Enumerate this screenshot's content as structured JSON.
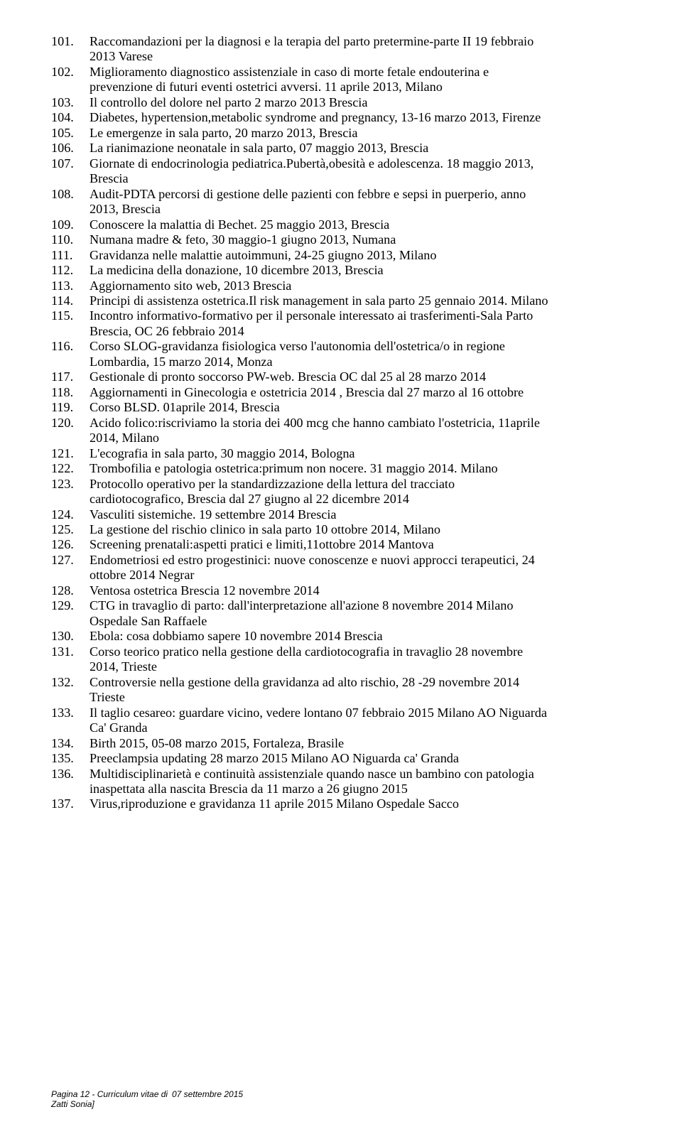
{
  "footer": {
    "line1_left": "Pagina 12 - Curriculum vitae di",
    "line1_right": "07 settembre 2015",
    "line2_left": "Zatti Sonia]"
  },
  "items": [
    {
      "n": "101.",
      "t": "Raccomandazioni per la diagnosi e la terapia del parto pretermine-parte II 19 febbraio",
      "c": "2013 Varese"
    },
    {
      "n": "102.",
      "t": "Miglioramento diagnostico assistenziale in caso di morte fetale endouterina e",
      "c": "prevenzione di futuri eventi ostetrici avversi. 11 aprile 2013, Milano"
    },
    {
      "n": "103.",
      "t": "Il controllo del dolore nel parto 2 marzo 2013 Brescia"
    },
    {
      "n": "104.",
      "t": "Diabetes, hypertension,metabolic syndrome and pregnancy, 13-16 marzo 2013, Firenze"
    },
    {
      "n": "105.",
      "t": "Le emergenze in sala parto, 20 marzo 2013, Brescia"
    },
    {
      "n": "106.",
      "t": "La rianimazione neonatale in sala parto, 07 maggio 2013, Brescia"
    },
    {
      "n": "107.",
      "t": "Giornate di endocrinologia pediatrica.Pubertà,obesità e adolescenza. 18 maggio 2013,",
      "c": "Brescia"
    },
    {
      "n": "108.",
      "t": "Audit-PDTA percorsi di gestione delle pazienti con febbre e sepsi in puerperio, anno",
      "c": "2013, Brescia"
    },
    {
      "n": "109.",
      "t": "Conoscere la malattia di Bechet. 25 maggio 2013, Brescia"
    },
    {
      "n": "110.",
      "t": "Numana madre & feto, 30 maggio-1 giugno 2013, Numana"
    },
    {
      "n": "111.",
      "t": "Gravidanza nelle malattie autoimmuni, 24-25 giugno 2013, Milano"
    },
    {
      "n": "112.",
      "t": "La medicina della donazione, 10 dicembre 2013, Brescia"
    },
    {
      "n": "113.",
      "t": "Aggiornamento sito web, 2013 Brescia"
    },
    {
      "n": "114.",
      "t": "Principi di assistenza ostetrica.Il risk management in sala parto 25 gennaio 2014. Milano"
    },
    {
      "n": "115.",
      "t": "Incontro informativo-formativo per il personale interessato ai trasferimenti-Sala Parto",
      "c": "Brescia, OC 26 febbraio 2014"
    },
    {
      "n": "116.",
      "t": "Corso SLOG-gravidanza fisiologica verso l'autonomia dell'ostetrica/o in regione",
      "c": "Lombardia, 15 marzo 2014, Monza"
    },
    {
      "n": "117.",
      "t": "Gestionale di pronto soccorso PW-web. Brescia OC dal 25 al 28 marzo 2014"
    },
    {
      "n": "118.",
      "t": "Aggiornamenti in Ginecologia e ostetricia 2014 , Brescia dal 27 marzo al 16 ottobre"
    },
    {
      "n": "119.",
      "t": "Corso BLSD. 01aprile 2014, Brescia"
    },
    {
      "n": "120.",
      "t": "Acido folico:riscriviamo la storia dei 400 mcg che hanno cambiato l'ostetricia, 11aprile",
      "c": "2014, Milano"
    },
    {
      "n": "121.",
      "t": "L'ecografia in sala parto, 30 maggio 2014, Bologna"
    },
    {
      "n": "122.",
      "t": "Trombofilia e patologia ostetrica:primum non nocere. 31 maggio 2014. Milano"
    },
    {
      "n": "123.",
      "t": "Protocollo operativo per la standardizzazione della lettura del tracciato",
      "c": "cardiotocografico, Brescia dal 27 giugno al 22 dicembre 2014"
    },
    {
      "n": "124.",
      "t": "Vasculiti sistemiche. 19 settembre 2014 Brescia"
    },
    {
      "n": "125.",
      "t": "La gestione del rischio clinico in  sala parto 10 ottobre 2014, Milano"
    },
    {
      "n": "126.",
      "t": "Screening prenatali:aspetti pratici e limiti,11ottobre 2014 Mantova"
    },
    {
      "n": "127.",
      "t": "Endometriosi ed estro progestinici: nuove conoscenze e nuovi approcci terapeutici, 24",
      "c": "ottobre 2014 Negrar"
    },
    {
      "n": "128.",
      "t": "Ventosa ostetrica Brescia 12 novembre 2014"
    },
    {
      "n": "129.",
      "t": "CTG in travaglio di parto: dall'interpretazione all'azione 8 novembre 2014 Milano",
      "c": "Ospedale San Raffaele"
    },
    {
      "n": "130.",
      "t": "Ebola: cosa dobbiamo sapere 10 novembre 2014 Brescia"
    },
    {
      "n": "131.",
      "t": "Corso teorico pratico nella gestione della cardiotocografia in travaglio 28 novembre",
      "c": "2014, Trieste"
    },
    {
      "n": "132.",
      "t": "Controversie nella gestione della gravidanza ad alto rischio, 28 -29 novembre 2014",
      "c": "Trieste"
    },
    {
      "n": "133.",
      "t": "Il taglio cesareo: guardare vicino, vedere lontano 07 febbraio 2015 Milano AO Niguarda",
      "c": "Ca' Granda"
    },
    {
      "n": "134.",
      "t": "Birth 2015, 05-08 marzo 2015, Fortaleza, Brasile"
    },
    {
      "n": "135.",
      "t": "Preeclampsia updating 28 marzo 2015  Milano AO Niguarda ca' Granda"
    },
    {
      "n": "136.",
      "t": "Multidisciplinarietà e continuità assistenziale quando nasce un bambino con patologia",
      "c": "inaspettata alla nascita Brescia da 11 marzo a 26 giugno 2015"
    },
    {
      "n": "137.",
      "t": "Virus,riproduzione e gravidanza 11 aprile 2015 Milano Ospedale Sacco"
    }
  ]
}
